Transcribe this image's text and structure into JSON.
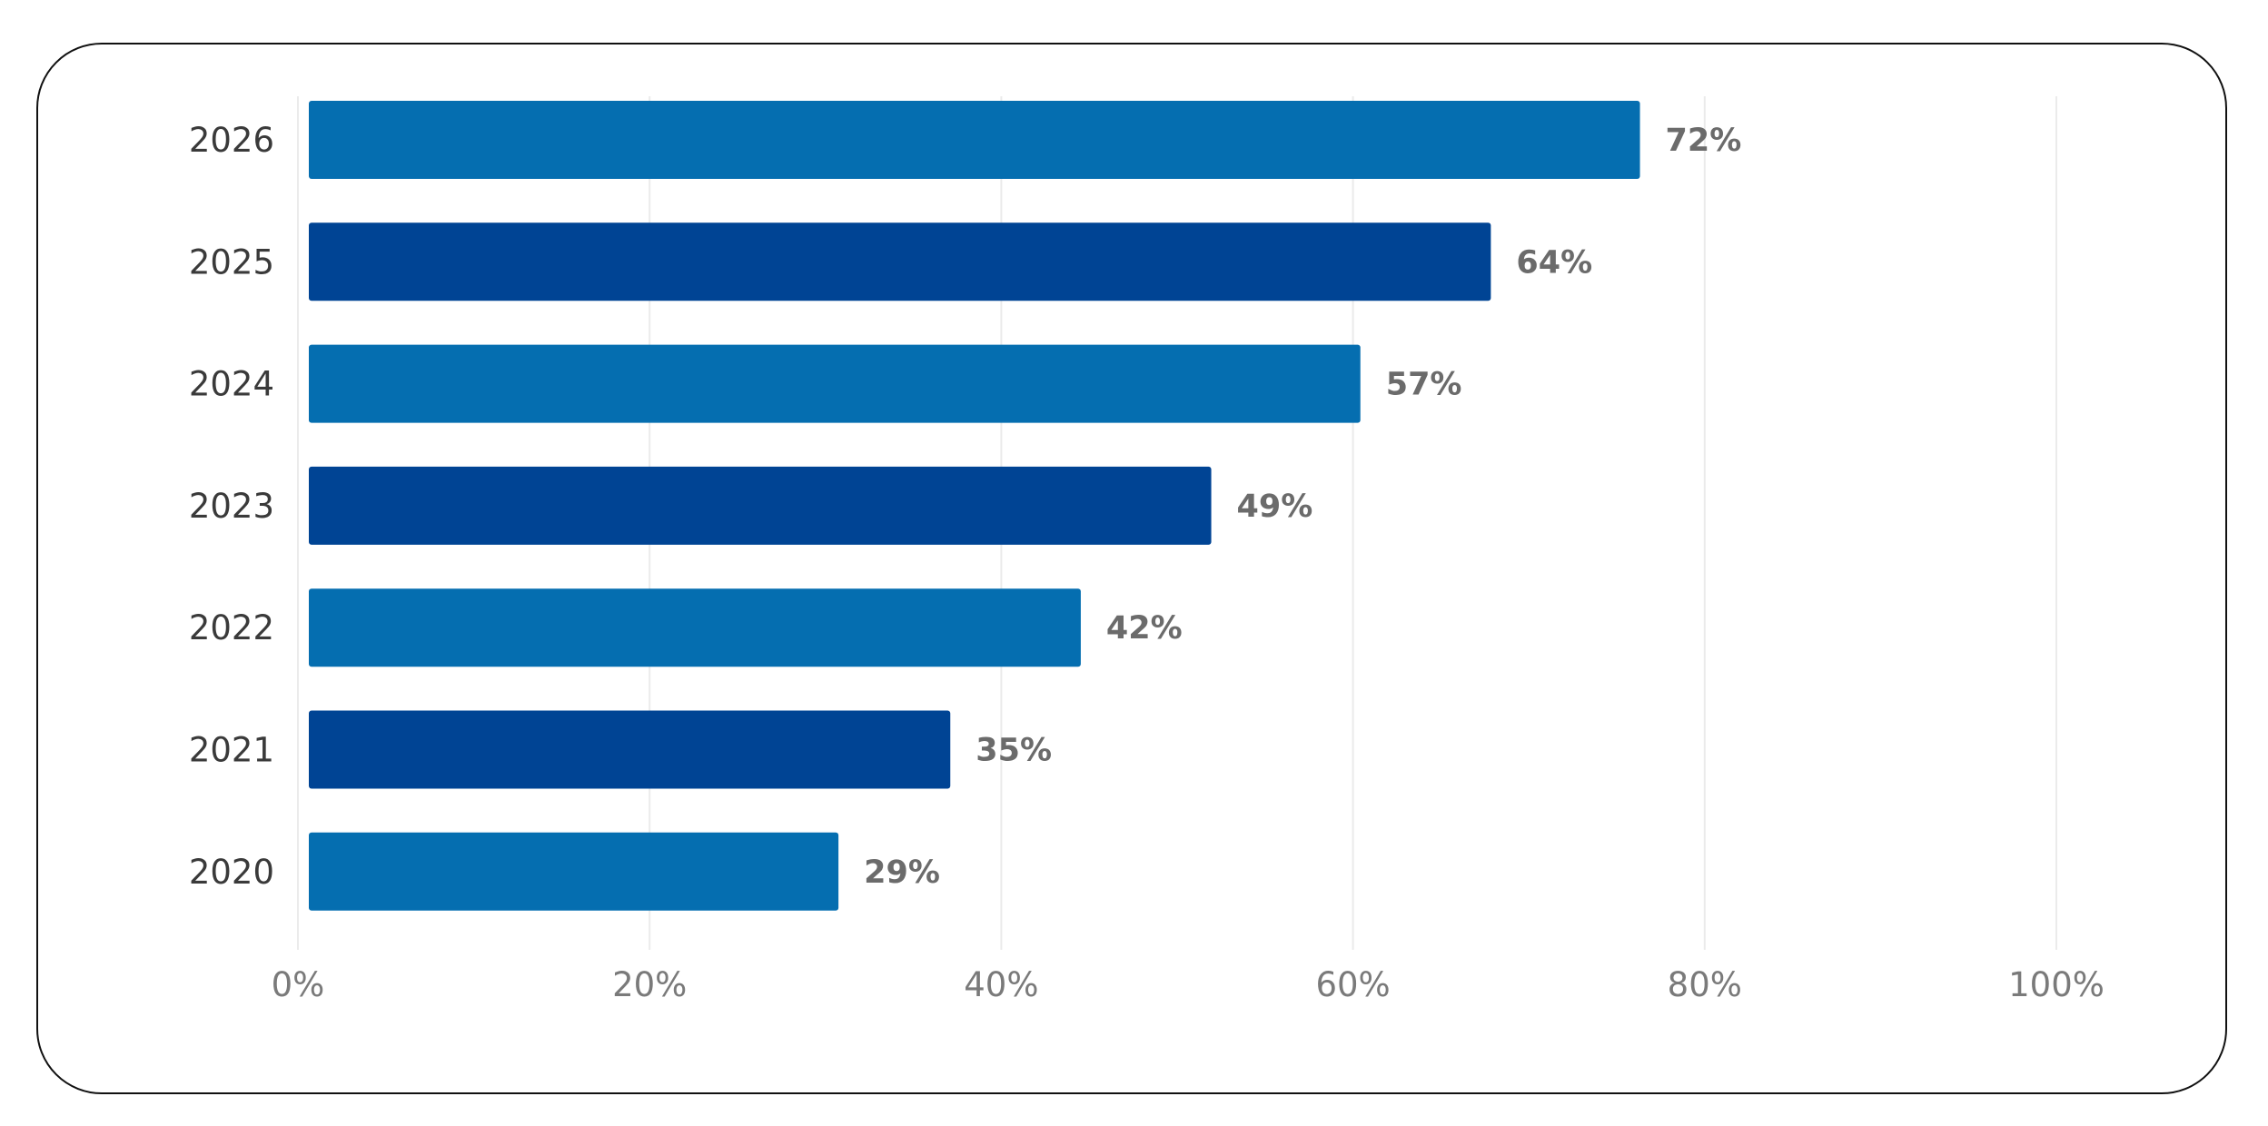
{
  "chart_data": {
    "type": "bar",
    "orientation": "horizontal",
    "categories": [
      "2026",
      "2025",
      "2024",
      "2023",
      "2022",
      "2021",
      "2020"
    ],
    "values": [
      72,
      64,
      57,
      49,
      42,
      35,
      29
    ],
    "value_labels": [
      "72%",
      "64%",
      "57%",
      "49%",
      "42%",
      "35%",
      "29%"
    ],
    "bar_colors": [
      "#056eb0",
      "#004494",
      "#056eb0",
      "#004494",
      "#056eb0",
      "#004494",
      "#056eb0"
    ],
    "xlim": [
      0,
      100
    ],
    "x_ticks": [
      0,
      20,
      40,
      60,
      80,
      100
    ],
    "x_tick_labels": [
      "0%",
      "20%",
      "40%",
      "60%",
      "80%",
      "100%"
    ],
    "grid": true,
    "title": "",
    "xlabel": "",
    "ylabel": ""
  }
}
